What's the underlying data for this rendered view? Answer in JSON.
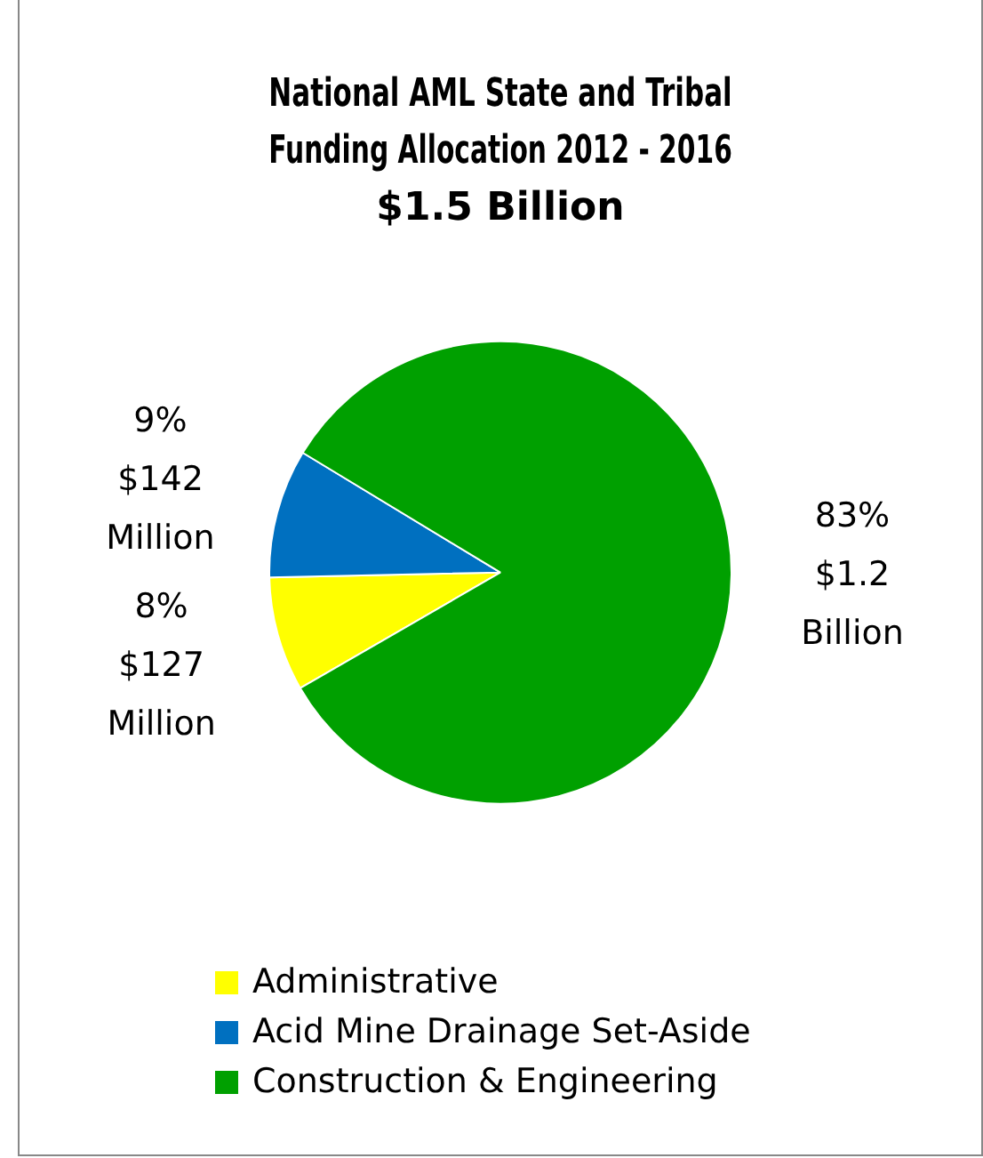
{
  "chart_data": {
    "type": "pie",
    "title": "National AML State and Tribal\nFunding Allocation 2012 - 2016\n$1.5 Billion",
    "categories": [
      "Administrative",
      "Acid Mine Drainage Set-Aside",
      "Construction & Engineering"
    ],
    "values": [
      8,
      9,
      83
    ],
    "colors": [
      "#ffff00",
      "#0070c0",
      "#00a000"
    ],
    "value_labels": [
      "8%\n$127\nMillion",
      "9%\n$142\nMillion",
      "83%\n$1.2\nBillion"
    ],
    "legend": "bottom"
  }
}
